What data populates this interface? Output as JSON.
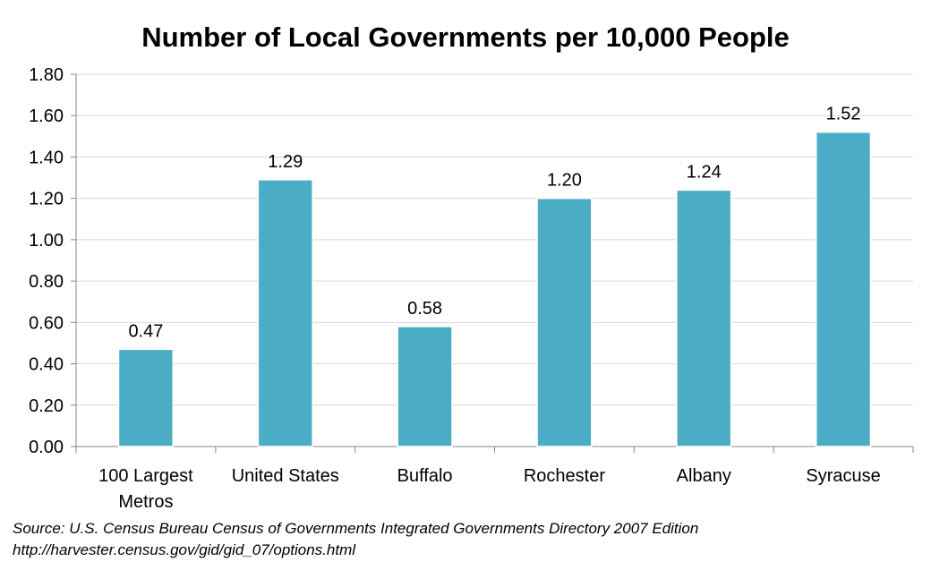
{
  "chart_data": {
    "type": "bar",
    "title": "Number of Local Governments per 10,000 People",
    "categories": [
      [
        "100 Largest",
        "Metros"
      ],
      [
        "United States"
      ],
      [
        "Buffalo"
      ],
      [
        "Rochester"
      ],
      [
        "Albany"
      ],
      [
        "Syracuse"
      ]
    ],
    "values": [
      0.47,
      1.29,
      0.58,
      1.2,
      1.24,
      1.52
    ],
    "value_labels": [
      "0.47",
      "1.29",
      "0.58",
      "1.20",
      "1.24",
      "1.52"
    ],
    "xlabel": "",
    "ylabel": "",
    "ylim": [
      0,
      1.8
    ],
    "yticks": [
      0,
      0.2,
      0.4,
      0.6,
      0.8,
      1.0,
      1.2,
      1.4,
      1.6,
      1.8
    ],
    "ytick_labels": [
      "0.00",
      "0.20",
      "0.40",
      "0.60",
      "0.80",
      "1.00",
      "1.20",
      "1.40",
      "1.60",
      "1.80"
    ],
    "grid": true,
    "legend": "none",
    "colors": {
      "bar": "#4BACC6",
      "bar_edge": "#FFFFFF",
      "grid": "#D9D9D9",
      "axis": "#868686"
    }
  },
  "source": {
    "line1": "Source: U.S. Census Bureau Census of Governments Integrated Governments Directory 2007 Edition",
    "line2": "http://harvester.census.gov/gid/gid_07/options.html"
  }
}
